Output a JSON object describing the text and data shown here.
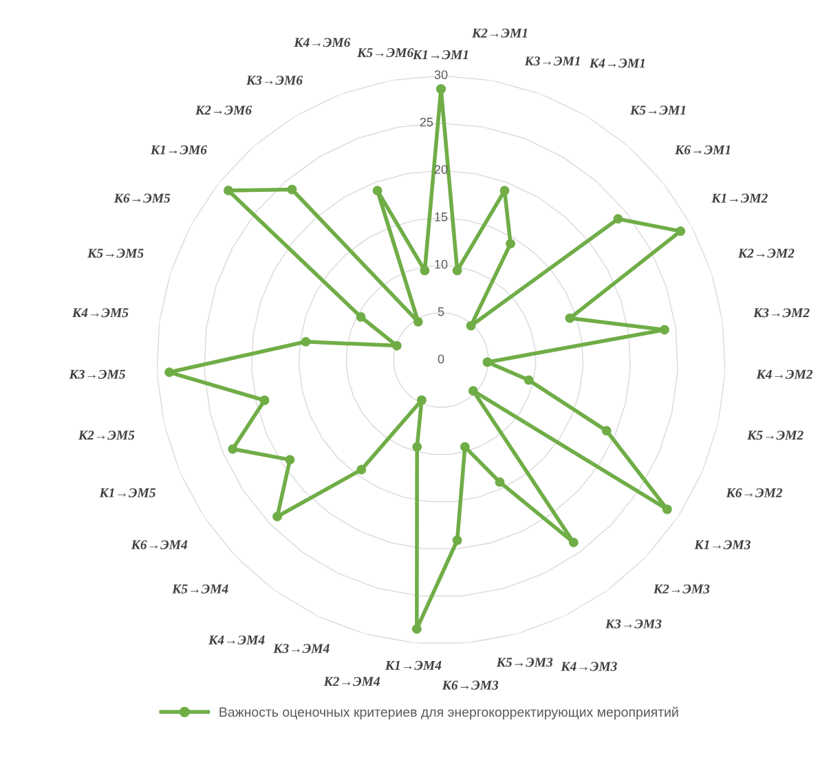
{
  "chart_data": {
    "type": "radar",
    "categories": [
      "К1→ЭМ1",
      "К2→ЭМ1",
      "К3→ЭМ1",
      "К4→ЭМ1",
      "К5→ЭМ1",
      "К6→ЭМ1",
      "К1→ЭМ2",
      "К2→ЭМ2",
      "К3→ЭМ2",
      "К4→ЭМ2",
      "К5→ЭМ2",
      "К6→ЭМ2",
      "К1→ЭМ3",
      "К2→ЭМ3",
      "К3→ЭМ3",
      "К4→ЭМ3",
      "К5→ЭМ3",
      "К6→ЭМ3",
      "К1→ЭМ4",
      "К2→ЭМ4",
      "К3→ЭМ4",
      "К4→ЭМ4",
      "К5→ЭМ4",
      "К6→ЭМ4",
      "К1→ЭМ5",
      "К2→ЭМ5",
      "К3→ЭМ5",
      "К4→ЭМ5",
      "К5→ЭМ5",
      "К6→ЭМ5",
      "К1→ЭМ6",
      "К2→ЭМ6",
      "К3→ЭМ6",
      "К4→ЭМ6",
      "К5→ЭМ6"
    ],
    "series": [
      {
        "name": "Важность оценочных критериев для энергокорректирующих мероприятий",
        "color": "#70ad47",
        "values": [
          28.6,
          9.6,
          19.1,
          14.3,
          4.8,
          23.9,
          28.7,
          14.3,
          23.8,
          4.9,
          9.5,
          19.0,
          28.6,
          4.7,
          23.8,
          14.3,
          9.5,
          19.1,
          28.5,
          9.5,
          4.7,
          14.3,
          23.9,
          19.1,
          23.9,
          19.1,
          28.7,
          14.4,
          4.9,
          9.6,
          28.7,
          23.9,
          4.7,
          19.1,
          9.6
        ]
      }
    ],
    "ylim": [
      0,
      30
    ],
    "yticks": [
      0,
      5,
      10,
      15,
      20,
      25,
      30
    ],
    "grid": true,
    "legend": "bottom",
    "marker": "circle",
    "line_style": "solid"
  }
}
